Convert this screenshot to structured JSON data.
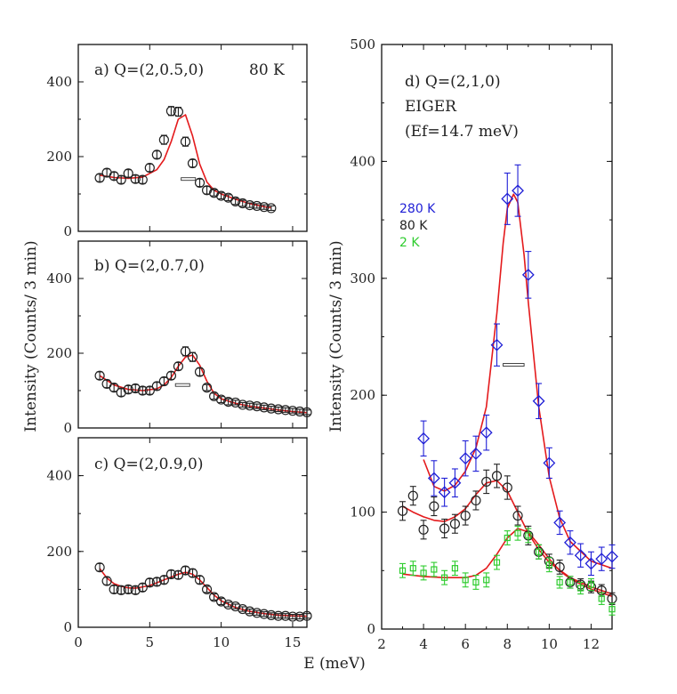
{
  "chart_data": {
    "type": "scatter",
    "shared_xlabel": "E (meV)",
    "panels": [
      {
        "id": "a",
        "title": "a) Q=(2,0.5,0)",
        "temperature_label": "80 K",
        "ylabel": "Intensity (Counts/ 3 min)",
        "xlim": [
          0,
          16
        ],
        "ylim": [
          0,
          500
        ],
        "xticks": [
          "0",
          "5",
          "10",
          "15"
        ],
        "yticks": [
          "0",
          "200",
          "400"
        ],
        "series": [
          {
            "name": "80 K",
            "marker": "circle",
            "color": "#222222",
            "x": [
              1.5,
              2.0,
              2.5,
              3.0,
              3.5,
              4.0,
              4.5,
              5.0,
              5.5,
              6.0,
              6.5,
              7.0,
              7.5,
              8.0,
              8.5,
              9.0,
              9.5,
              10.0,
              10.5,
              11.0,
              11.5,
              12.0,
              12.5,
              13.0,
              13.5
            ],
            "y": [
              143,
              157,
              148,
              138,
              155,
              140,
              138,
              170,
              205,
              245,
              322,
              320,
              240,
              182,
              130,
              110,
              103,
              95,
              90,
              80,
              75,
              70,
              68,
              65,
              62
            ],
            "err": [
              10,
              10,
              10,
              10,
              10,
              10,
              10,
              10,
              10,
              12,
              12,
              12,
              12,
              10,
              10,
              10,
              8,
              8,
              8,
              8,
              8,
              6,
              6,
              6,
              6
            ]
          }
        ],
        "fit": {
          "color": "#e41a1c",
          "x": [
            1.5,
            2.5,
            3.5,
            4.5,
            5.5,
            6.0,
            6.5,
            7.0,
            7.5,
            8.0,
            8.5,
            9.0,
            9.5,
            10.0,
            11.0,
            12.0,
            13.0,
            13.5
          ],
          "y": [
            150,
            144,
            142,
            145,
            165,
            192,
            240,
            300,
            312,
            255,
            180,
            132,
            110,
            100,
            86,
            74,
            66,
            63
          ]
        },
        "resolution_bar": {
          "x": [
            7.2,
            8.2
          ],
          "y": 140
        }
      },
      {
        "id": "b",
        "title": "b) Q=(2,0.7,0)",
        "ylabel": "",
        "xlim": [
          0,
          16
        ],
        "ylim": [
          0,
          500
        ],
        "xticks": [
          "0",
          "5",
          "10",
          "15"
        ],
        "yticks": [
          "0",
          "200",
          "400"
        ],
        "series": [
          {
            "name": "80 K",
            "marker": "circle",
            "color": "#222222",
            "x": [
              1.5,
              2.0,
              2.5,
              3.0,
              3.5,
              4.0,
              4.5,
              5.0,
              5.5,
              6.0,
              6.5,
              7.0,
              7.5,
              8.0,
              8.5,
              9.0,
              9.5,
              10.0,
              10.5,
              11.0,
              11.5,
              12.0,
              12.5,
              13.0,
              13.5,
              14.0,
              14.5,
              15.0,
              15.5,
              16.0
            ],
            "y": [
              140,
              118,
              108,
              95,
              103,
              106,
              100,
              100,
              112,
              125,
              140,
              165,
              205,
              190,
              150,
              108,
              85,
              76,
              70,
              68,
              62,
              60,
              58,
              55,
              52,
              50,
              48,
              46,
              44,
              42
            ],
            "err": [
              10,
              10,
              10,
              10,
              10,
              10,
              10,
              10,
              10,
              10,
              10,
              10,
              12,
              12,
              10,
              8,
              8,
              8,
              8,
              6,
              6,
              6,
              6,
              6,
              6,
              6,
              6,
              6,
              6,
              6
            ]
          }
        ],
        "fit": {
          "color": "#e41a1c",
          "x": [
            1.5,
            2.5,
            3.5,
            4.5,
            5.5,
            6.0,
            6.5,
            7.0,
            7.5,
            8.0,
            8.5,
            9.0,
            9.5,
            10.0,
            11.0,
            12.0,
            13.0,
            14.0,
            15.0,
            16.0
          ],
          "y": [
            140,
            115,
            103,
            100,
            105,
            115,
            135,
            165,
            190,
            195,
            168,
            125,
            93,
            78,
            66,
            58,
            53,
            48,
            44,
            41
          ]
        },
        "resolution_bar": {
          "x": [
            6.8,
            7.8
          ],
          "y": 115
        }
      },
      {
        "id": "c",
        "title": "c) Q=(2,0.9,0)",
        "ylabel": "",
        "xlim": [
          0,
          16
        ],
        "ylim": [
          0,
          500
        ],
        "xticks": [
          "0",
          "5",
          "10",
          "15"
        ],
        "yticks": [
          "0",
          "200",
          "400"
        ],
        "series": [
          {
            "name": "80 K",
            "marker": "circle",
            "color": "#222222",
            "x": [
              1.5,
              2.0,
              2.5,
              3.0,
              3.5,
              4.0,
              4.5,
              5.0,
              5.5,
              6.0,
              6.5,
              7.0,
              7.5,
              8.0,
              8.5,
              9.0,
              9.5,
              10.0,
              10.5,
              11.0,
              11.5,
              12.0,
              12.5,
              13.0,
              13.5,
              14.0,
              14.5,
              15.0,
              15.5,
              16.0
            ],
            "y": [
              158,
              122,
              100,
              98,
              100,
              98,
              105,
              118,
              120,
              125,
              140,
              138,
              150,
              143,
              125,
              100,
              80,
              68,
              60,
              55,
              48,
              42,
              38,
              35,
              32,
              30,
              30,
              28,
              28,
              30
            ],
            "err": [
              10,
              10,
              10,
              10,
              10,
              10,
              10,
              10,
              10,
              10,
              10,
              10,
              10,
              10,
              10,
              8,
              8,
              8,
              6,
              6,
              6,
              6,
              6,
              6,
              6,
              6,
              6,
              6,
              6,
              6
            ]
          }
        ],
        "fit": {
          "color": "#e41a1c",
          "x": [
            1.5,
            2.0,
            2.5,
            3.0,
            3.5,
            4.0,
            5.0,
            6.0,
            7.0,
            7.5,
            8.0,
            8.5,
            9.0,
            9.5,
            10.0,
            11.0,
            12.0,
            13.0,
            14.0,
            15.0,
            16.0
          ],
          "y": [
            155,
            130,
            115,
            108,
            104,
            103,
            110,
            125,
            140,
            145,
            140,
            125,
            105,
            85,
            70,
            52,
            42,
            36,
            32,
            30,
            29
          ]
        },
        "resolution_bar": null
      },
      {
        "id": "d",
        "title_lines": [
          "d) Q=(2,1,0)",
          "EIGER",
          "(Ef=14.7 meV)"
        ],
        "ylabel": "Intensity (Counts/ 3 min)",
        "xlabel": "E (meV)",
        "xlim": [
          2,
          13
        ],
        "ylim": [
          0,
          500
        ],
        "xticks": [
          "2",
          "4",
          "6",
          "8",
          "10",
          "12"
        ],
        "yticks": [
          "0",
          "100",
          "200",
          "300",
          "400",
          "500"
        ],
        "legend": [
          {
            "label": "280 K",
            "color": "#1f1fd6"
          },
          {
            "label": "80 K",
            "color": "#222222"
          },
          {
            "label": "2 K",
            "color": "#2ecc2e"
          }
        ],
        "series": [
          {
            "name": "280 K",
            "marker": "diamond",
            "color": "#1f1fd6",
            "x": [
              4.0,
              4.5,
              5.0,
              5.5,
              6.0,
              6.5,
              7.0,
              7.5,
              8.0,
              8.5,
              9.0,
              9.5,
              10.0,
              10.5,
              11.0,
              11.5,
              12.0,
              12.5,
              13.0
            ],
            "y": [
              163,
              129,
              117,
              125,
              146,
              150,
              168,
              243,
              368,
              375,
              303,
              195,
              142,
              91,
              74,
              63,
              56,
              60,
              62
            ],
            "err": [
              15,
              15,
              12,
              12,
              15,
              15,
              15,
              18,
              22,
              22,
              20,
              15,
              13,
              10,
              10,
              10,
              10,
              10,
              10
            ]
          },
          {
            "name": "80 K",
            "marker": "circle",
            "color": "#222222",
            "x": [
              3.0,
              3.5,
              4.0,
              4.5,
              5.0,
              5.5,
              6.0,
              6.5,
              7.0,
              7.5,
              8.0,
              8.5,
              9.0,
              9.5,
              10.0,
              10.5,
              11.0,
              11.5,
              12.0,
              12.5,
              13.0
            ],
            "y": [
              101,
              114,
              85,
              105,
              86,
              90,
              97,
              110,
              126,
              131,
              121,
              97,
              80,
              66,
              58,
              53,
              40,
              38,
              36,
              33,
              26
            ],
            "err": [
              8,
              8,
              8,
              8,
              8,
              8,
              8,
              8,
              10,
              10,
              10,
              8,
              8,
              6,
              6,
              6,
              5,
              5,
              5,
              5,
              5
            ]
          },
          {
            "name": "2 K",
            "marker": "square",
            "color": "#2ecc2e",
            "x": [
              3.0,
              3.5,
              4.0,
              4.5,
              5.0,
              5.5,
              6.0,
              6.5,
              7.0,
              7.5,
              8.0,
              8.5,
              9.0,
              9.5,
              10.0,
              10.5,
              11.0,
              11.5,
              12.0,
              12.5,
              13.0
            ],
            "y": [
              50,
              52,
              48,
              51,
              44,
              52,
              42,
              40,
              42,
              57,
              78,
              82,
              80,
              66,
              55,
              40,
              40,
              35,
              38,
              26,
              17
            ],
            "err": [
              6,
              6,
              6,
              6,
              6,
              6,
              6,
              6,
              6,
              6,
              6,
              6,
              6,
              6,
              6,
              5,
              5,
              5,
              5,
              5,
              5
            ]
          }
        ],
        "fits": [
          {
            "name": "280 K fit",
            "color": "#e41a1c",
            "x": [
              4.0,
              4.5,
              5.0,
              5.5,
              6.0,
              6.5,
              7.0,
              7.5,
              7.8,
              8.0,
              8.3,
              8.5,
              8.8,
              9.0,
              9.5,
              10.0,
              10.5,
              11.0,
              12.0,
              13.0
            ],
            "y": [
              145,
              122,
              118,
              123,
              135,
              155,
              190,
              270,
              330,
              360,
              372,
              365,
              320,
              280,
              190,
              130,
              95,
              75,
              58,
              52
            ]
          },
          {
            "name": "80 K fit",
            "color": "#e41a1c",
            "x": [
              3.0,
              3.5,
              4.0,
              4.5,
              5.0,
              5.5,
              6.0,
              6.5,
              7.0,
              7.5,
              8.0,
              8.5,
              9.0,
              9.5,
              10.0,
              11.0,
              12.0,
              13.0
            ],
            "y": [
              105,
              100,
              96,
              93,
              92,
              96,
              103,
              115,
              125,
              127,
              118,
              100,
              82,
              68,
              57,
              44,
              36,
              30
            ]
          },
          {
            "name": "2 K fit",
            "color": "#e41a1c",
            "x": [
              3.0,
              4.0,
              5.0,
              6.0,
              6.5,
              7.0,
              7.5,
              8.0,
              8.5,
              9.0,
              9.5,
              10.0,
              10.5,
              11.0,
              12.0,
              13.0
            ],
            "y": [
              47,
              45,
              44,
              44,
              46,
              52,
              64,
              78,
              86,
              83,
              72,
              60,
              50,
              43,
              34,
              28
            ]
          }
        ],
        "resolution_bar": {
          "x": [
            7.8,
            8.8
          ],
          "y": 226
        }
      }
    ]
  }
}
